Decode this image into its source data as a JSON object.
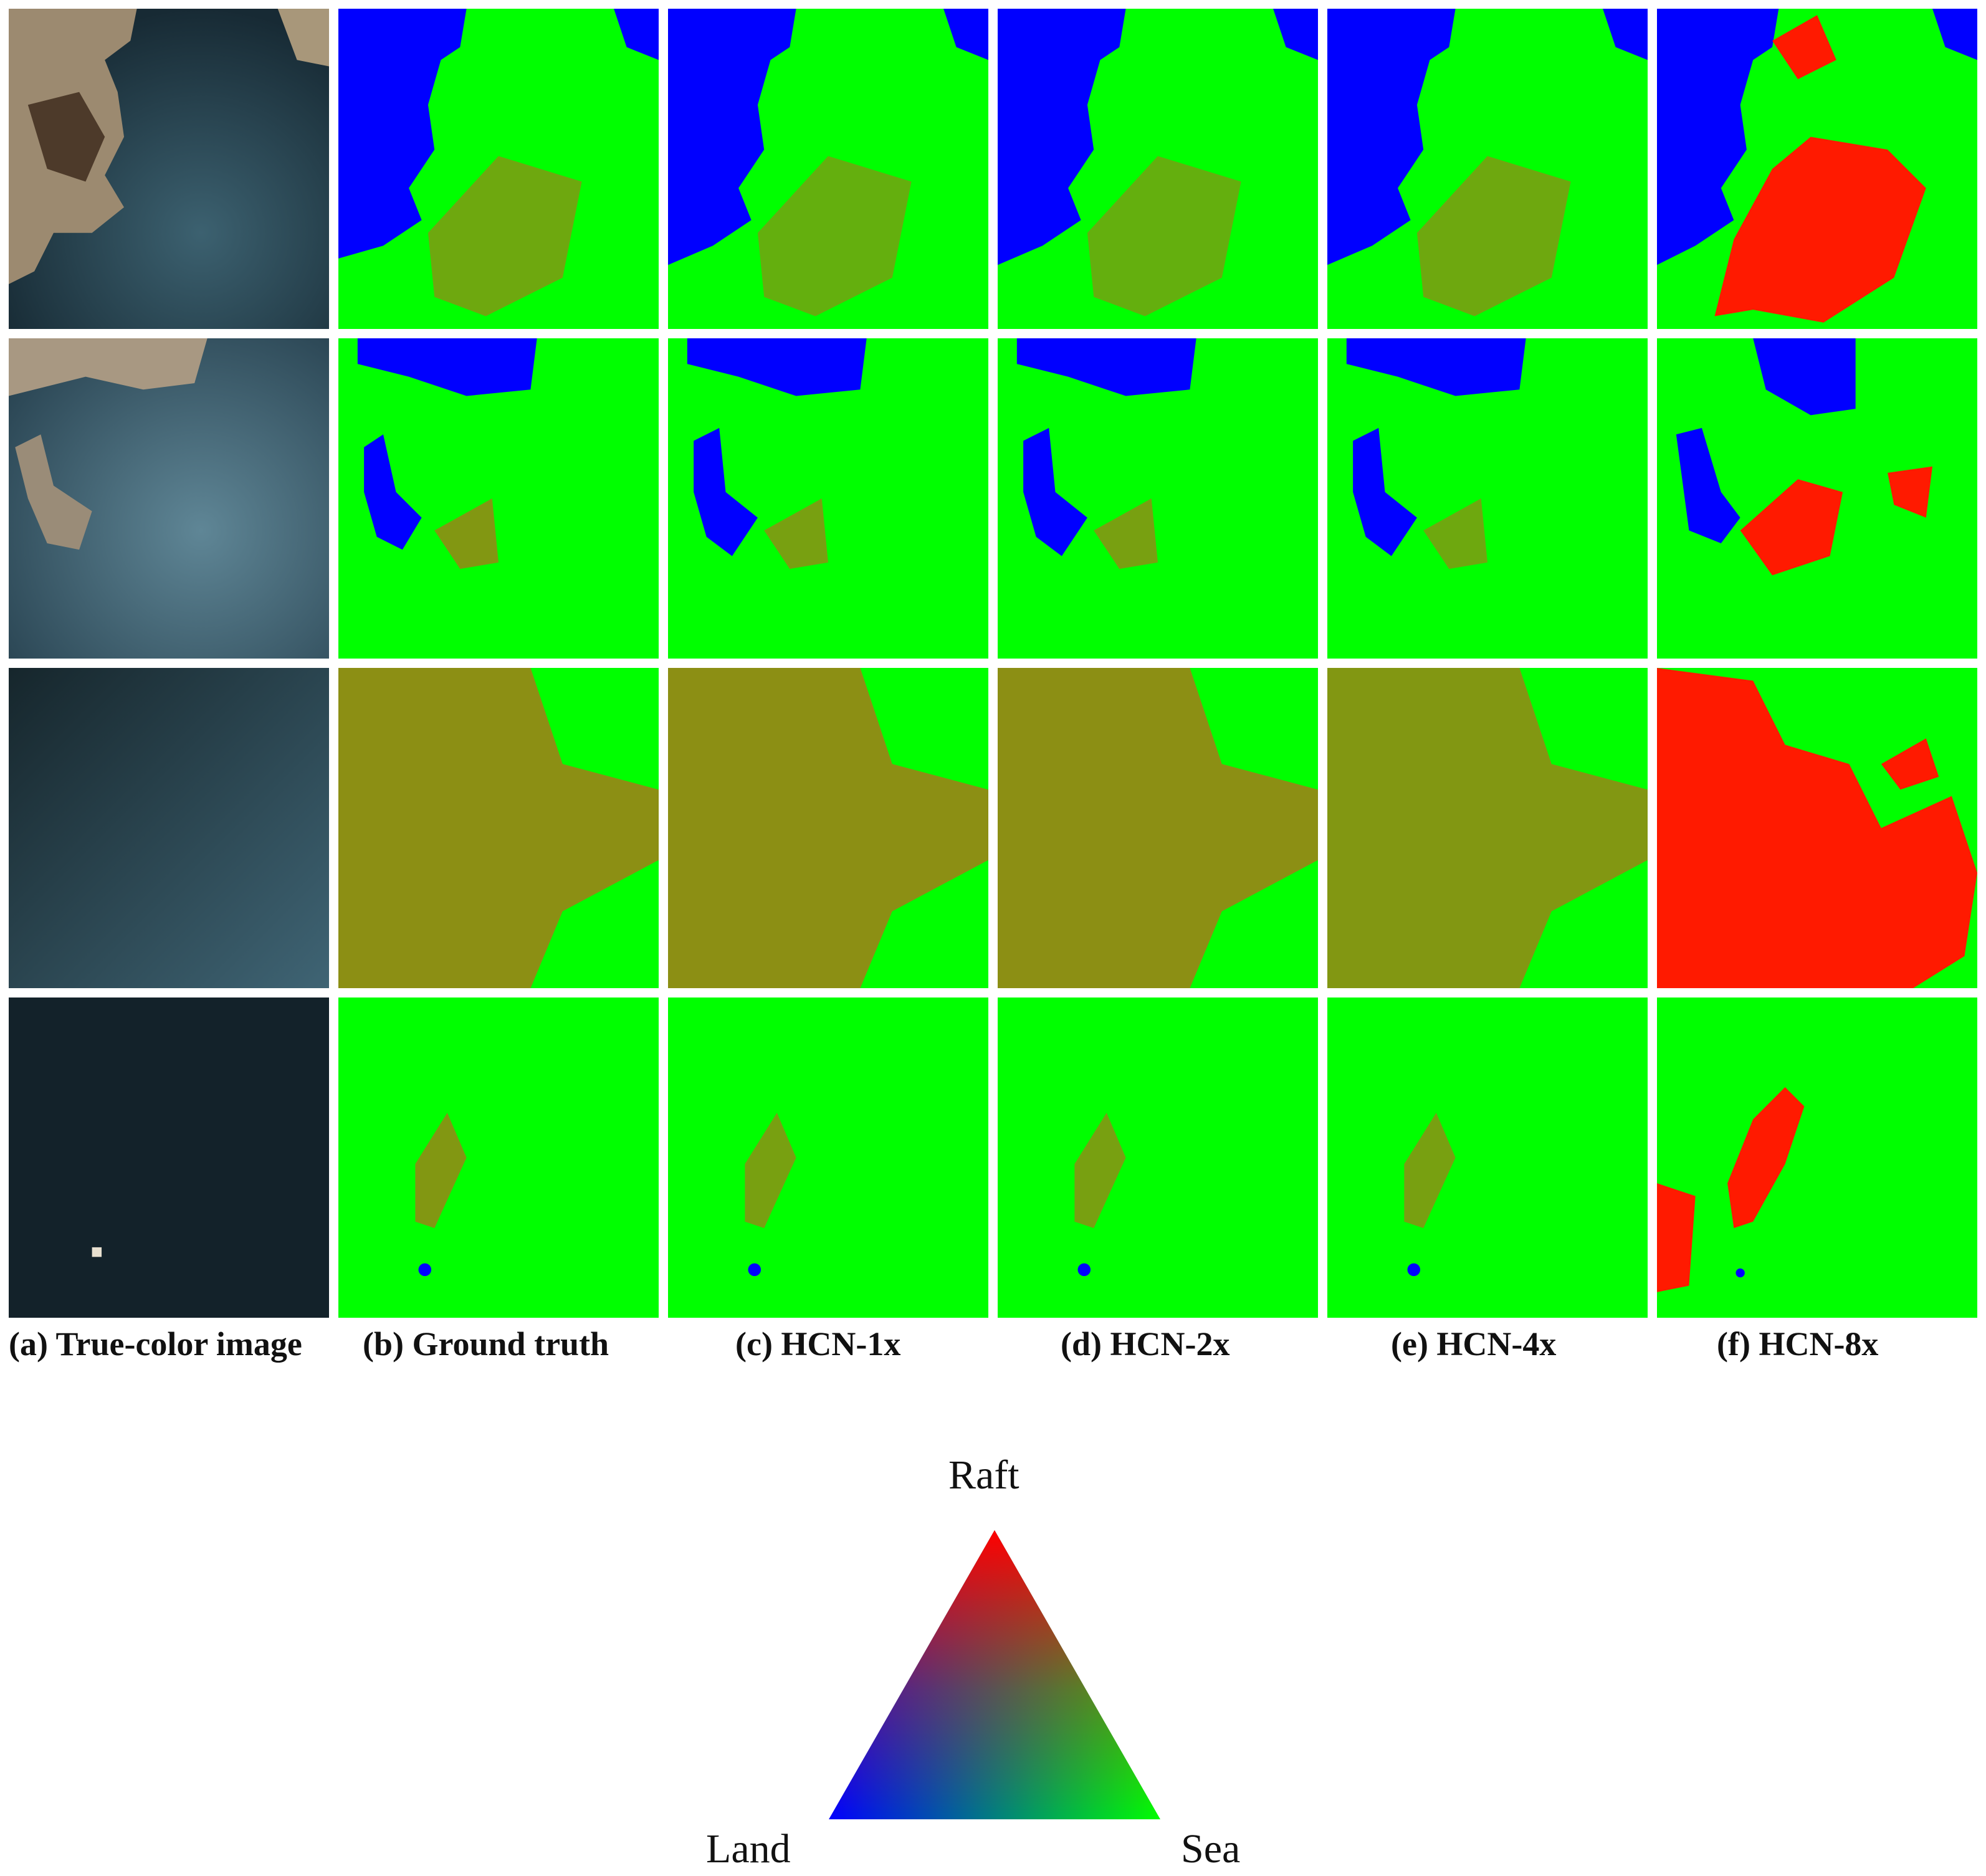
{
  "figure": {
    "columns": [
      {
        "label": "(a) True-color image",
        "kind": "true-color"
      },
      {
        "label": "(b) Ground truth",
        "kind": "ground-truth"
      },
      {
        "label": "(c) HCN-1x",
        "kind": "pred-1x"
      },
      {
        "label": "(d) HCN-2x",
        "kind": "pred-2x"
      },
      {
        "label": "(e) HCN-4x",
        "kind": "pred-4x"
      },
      {
        "label": "(f) HCN-8x",
        "kind": "pred-8x"
      }
    ],
    "row_count": 4
  },
  "legend": {
    "top_label": "Raft",
    "left_label": "Land",
    "right_label": "Sea",
    "colors": {
      "raft": "#ff0000",
      "land": "#0000ff",
      "sea": "#00ff00"
    }
  }
}
